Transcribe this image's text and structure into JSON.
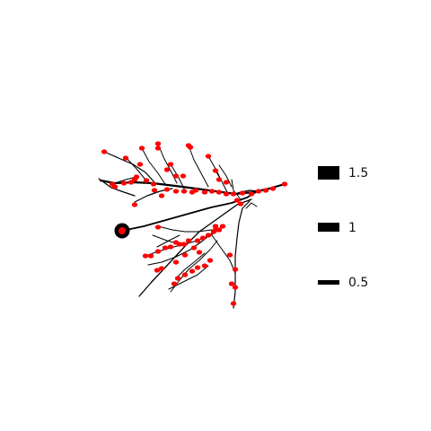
{
  "figure": {
    "branch_color": "#000000",
    "node_color": "#ff0000",
    "root_outline_color": "#000000"
  },
  "legend": {
    "items": [
      {
        "label": "1.5",
        "value": 1.5
      },
      {
        "label": "1",
        "value": 1
      },
      {
        "label": "0.5",
        "value": 0.5
      }
    ]
  }
}
